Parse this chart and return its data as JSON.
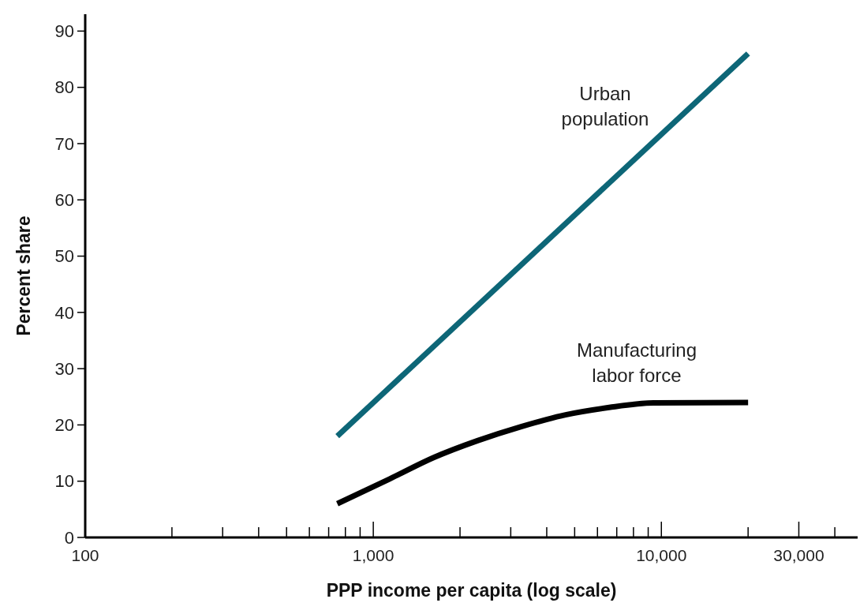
{
  "chart_data": {
    "type": "line",
    "xlabel": "PPP income per capita (log scale)",
    "ylabel": "Percent share",
    "log": "x",
    "xlim": [
      100,
      48000
    ],
    "ylim": [
      0,
      93
    ],
    "xticks": [
      100,
      {
        "value": 200,
        "label": null
      },
      {
        "value": 300,
        "label": null
      },
      {
        "value": 400,
        "label": null
      },
      {
        "value": 500,
        "label": null
      },
      {
        "value": 600,
        "label": null
      },
      {
        "value": 700,
        "label": null
      },
      {
        "value": 800,
        "label": null
      },
      {
        "value": 900,
        "label": null
      },
      {
        "value": 1000,
        "label": "1,000"
      },
      {
        "value": 2000,
        "label": null
      },
      {
        "value": 3000,
        "label": null
      },
      {
        "value": 4000,
        "label": null
      },
      {
        "value": 5000,
        "label": null
      },
      {
        "value": 6000,
        "label": null
      },
      {
        "value": 7000,
        "label": null
      },
      {
        "value": 8000,
        "label": null
      },
      {
        "value": 9000,
        "label": null
      },
      {
        "value": 10000,
        "label": "10,000"
      },
      {
        "value": 20000,
        "label": null
      },
      {
        "value": 30000,
        "label": "30,000"
      },
      {
        "value": 40000,
        "label": null
      }
    ],
    "yticks": [
      0,
      10,
      20,
      30,
      40,
      50,
      60,
      70,
      80,
      90
    ],
    "grid": false,
    "marker": "none",
    "line_style": "solid",
    "series": [
      {
        "color": "#0d6677",
        "x": [
          750,
          20000
        ],
        "values": [
          18,
          86
        ]
      },
      {
        "color": "#000000",
        "x": [
          750,
          1140,
          1620,
          2300,
          3260,
          4650,
          6590,
          9390,
          20000
        ],
        "values": [
          6,
          10.4,
          14.2,
          17.2,
          19.7,
          21.8,
          23.1,
          23.9,
          24
        ]
      }
    ],
    "annotations": [
      "Urban\npopulation",
      "Manufacturing\nlabor force"
    ]
  }
}
